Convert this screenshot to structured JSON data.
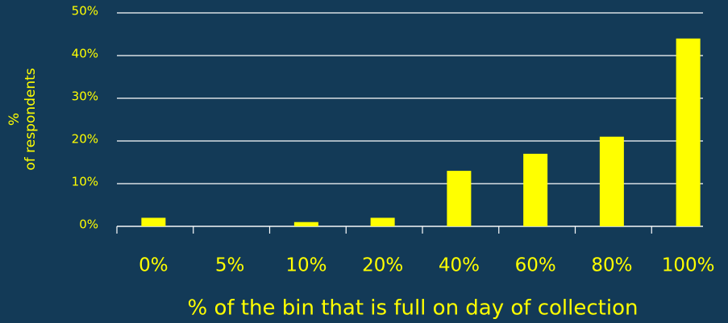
{
  "chart_data": {
    "type": "bar",
    "xlabel": "% of the bin that is full on day of collection",
    "ylabel": [
      "%",
      "of respondents"
    ],
    "categories": [
      "0%",
      "5%",
      "10%",
      "20%",
      "40%",
      "60%",
      "80%",
      "100%"
    ],
    "values": [
      2,
      0,
      1,
      2,
      13,
      17,
      21,
      44
    ],
    "color": "#ffff00",
    "ylim": [
      0,
      50
    ],
    "yticks": [
      {
        "value": 0,
        "label": "0%"
      },
      {
        "value": 10,
        "label": "10%"
      },
      {
        "value": 20,
        "label": "20%"
      },
      {
        "value": 30,
        "label": "30%"
      },
      {
        "value": 40,
        "label": "40%"
      },
      {
        "value": 50,
        "label": "50%"
      }
    ],
    "grid": true
  }
}
